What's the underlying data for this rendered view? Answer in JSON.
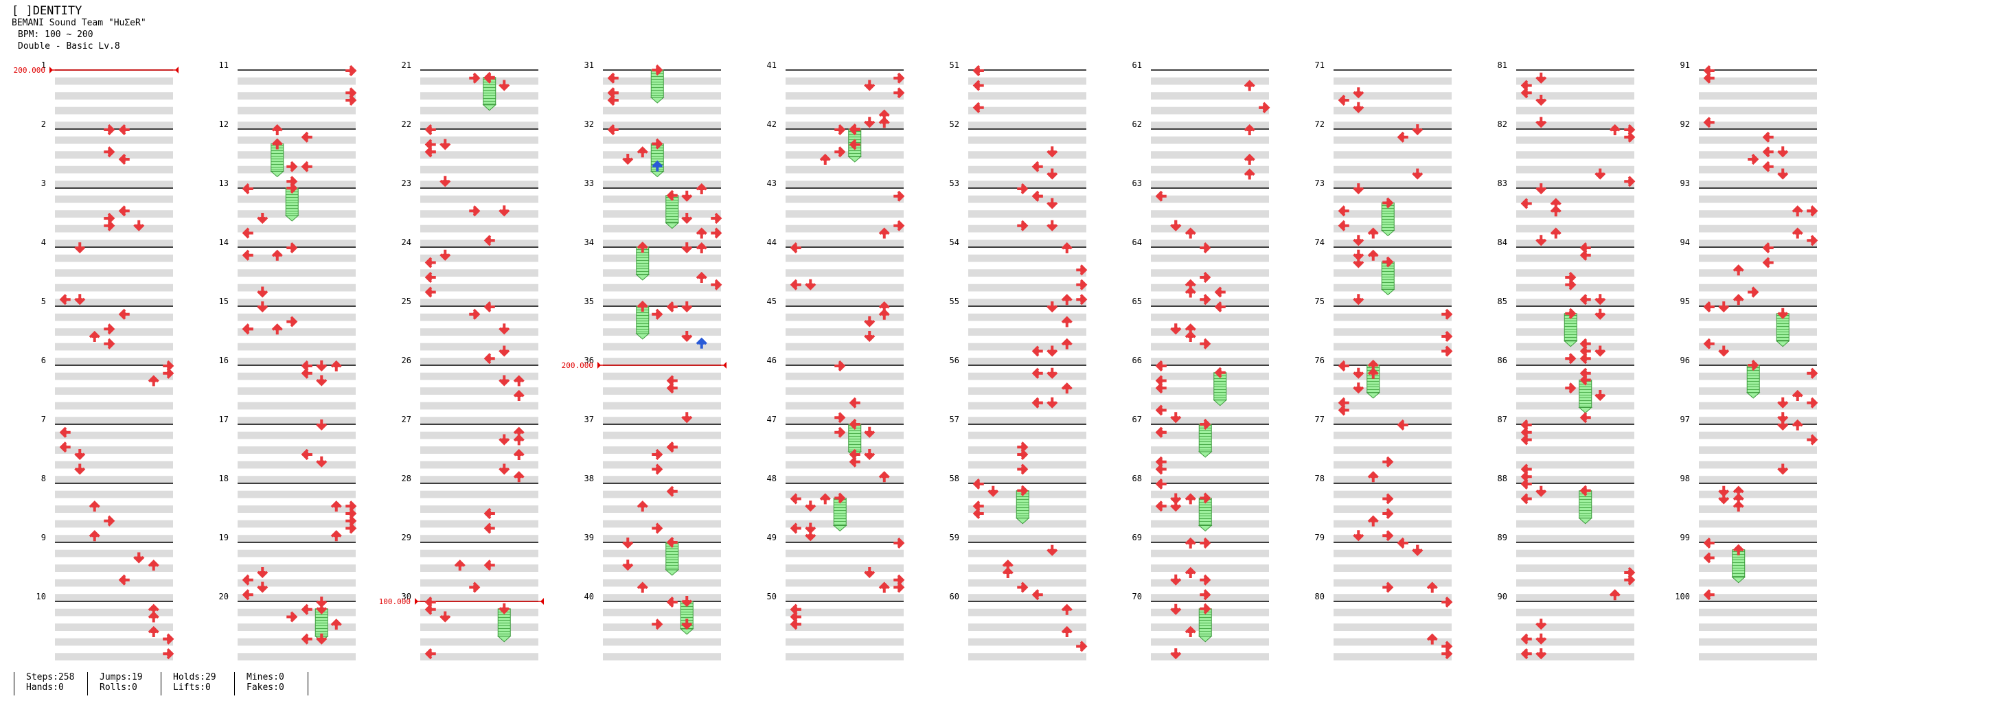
{
  "header": {
    "title": "[ ]DENTITY",
    "artist": "BEMANI Sound Team \"HuΣeR\"",
    "bpm": "BPM: 100 ~ 200",
    "difficulty": "Double - Basic  Lv.8"
  },
  "measures": [
    "1",
    "2",
    "3",
    "4",
    "5",
    "6",
    "7",
    "8",
    "9",
    "10",
    "11",
    "12",
    "13",
    "14",
    "15",
    "16",
    "17",
    "18",
    "19",
    "20",
    "21",
    "22",
    "23",
    "24",
    "25",
    "26",
    "27",
    "28",
    "29",
    "30",
    "31",
    "32",
    "33",
    "34",
    "35",
    "36",
    "37",
    "38",
    "39",
    "40",
    "41",
    "42",
    "43",
    "44",
    "45",
    "46",
    "47",
    "48",
    "49",
    "50",
    "51",
    "52",
    "53",
    "54",
    "55",
    "56",
    "57",
    "58",
    "59",
    "60",
    "61",
    "62",
    "63",
    "64",
    "65",
    "66",
    "67",
    "68",
    "69",
    "70",
    "71",
    "72",
    "73",
    "74",
    "75",
    "76",
    "77",
    "78",
    "79",
    "80",
    "81",
    "82",
    "83",
    "84",
    "85",
    "86",
    "87",
    "88",
    "89",
    "90",
    "91",
    "92",
    "93",
    "94",
    "95",
    "96",
    "97",
    "98",
    "99",
    "100"
  ],
  "bpm_changes": [
    {
      "measure": 1,
      "label": "200.000"
    },
    {
      "measure": 30,
      "label": "100.000"
    },
    {
      "measure": 36,
      "label": "200.000"
    }
  ],
  "colors": {
    "arrow": "#e8383c",
    "hold": "#8ee68e",
    "mine": "#2a5bd7",
    "bpm": "#e00000"
  },
  "stats": {
    "steps": "Steps:258",
    "hands": "Hands:0",
    "jumps": "Jumps:19",
    "rolls": "Rolls:0",
    "holds": "Holds:29",
    "lifts": "Lifts:0",
    "mines": "Mines:0",
    "fakes": "Fakes:0"
  }
}
